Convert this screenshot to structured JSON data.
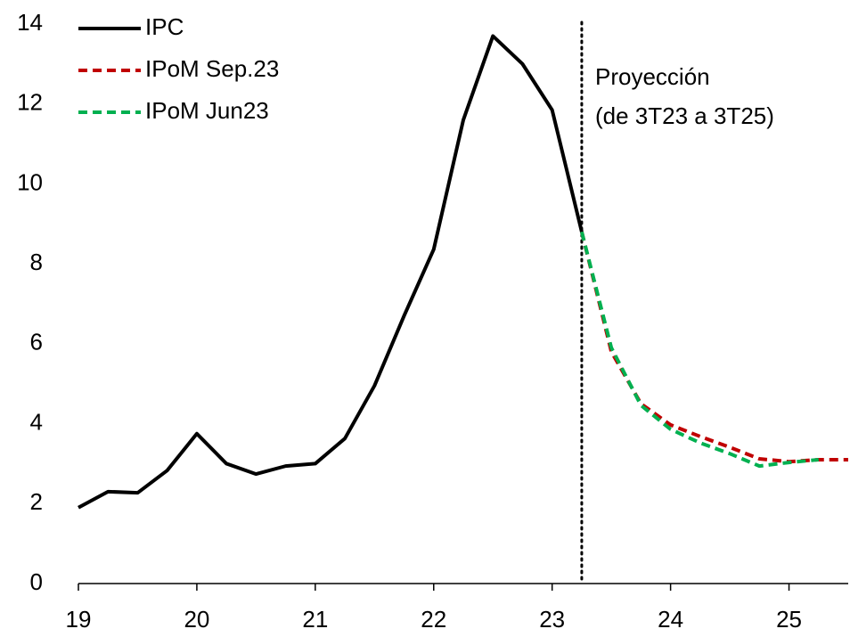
{
  "chart_data": {
    "type": "line",
    "annotation": [
      "Proyección",
      "(de 3T23 a 3T25)"
    ],
    "vline": 23.25,
    "xlim": [
      19,
      25.5
    ],
    "xticks": [
      19,
      20,
      21,
      22,
      23,
      24,
      25
    ],
    "ylim": [
      0,
      14
    ],
    "yticks": [
      0,
      2,
      4,
      6,
      8,
      10,
      12,
      14
    ],
    "grid": false,
    "legend": "top-left",
    "series": [
      {
        "name": "IPC",
        "color": "#000000",
        "dash": false,
        "x": [
          19,
          19.25,
          19.5,
          19.75,
          20,
          20.25,
          20.5,
          20.75,
          21,
          21.25,
          21.5,
          21.75,
          22,
          22.25,
          22.5,
          22.75,
          23,
          23.25
        ],
        "values": [
          1.9,
          2.3,
          2.27,
          2.83,
          3.75,
          3.0,
          2.74,
          2.94,
          3.0,
          3.63,
          4.95,
          6.7,
          8.36,
          11.6,
          13.7,
          13.0,
          11.85,
          8.8
        ]
      },
      {
        "name": "IPoM Sep.23",
        "color": "#c00000",
        "dash": true,
        "x": [
          23.25,
          23.5,
          23.75,
          24,
          24.25,
          24.5,
          24.75,
          25,
          25.25,
          25.5
        ],
        "values": [
          8.8,
          5.8,
          4.5,
          3.97,
          3.68,
          3.41,
          3.12,
          3.05,
          3.1,
          3.1
        ]
      },
      {
        "name": "IPoM Jun23",
        "color": "#00b050",
        "dash": true,
        "x": [
          23.25,
          23.5,
          23.75,
          24,
          24.25,
          24.5,
          24.75,
          25,
          25.25
        ],
        "values": [
          8.8,
          5.9,
          4.46,
          3.86,
          3.52,
          3.25,
          2.94,
          3.03,
          3.1
        ]
      }
    ]
  }
}
